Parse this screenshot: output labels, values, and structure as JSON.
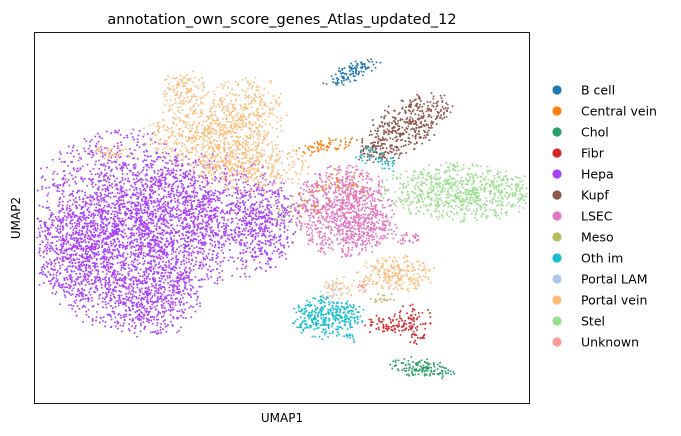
{
  "chart_data": {
    "type": "scatter",
    "title": "annotation_own_score_genes_Atlas_updated_12",
    "xlabel": "UMAP1",
    "ylabel": "UMAP2",
    "xlim": [
      0,
      100
    ],
    "ylim": [
      0,
      100
    ],
    "grid": false,
    "ticks_visible": false,
    "legend_position": "right",
    "series": [
      {
        "name": "B cell",
        "color": "#1f77b4",
        "clusters": [
          {
            "cx": 64.3,
            "cy": 89.5,
            "sx": 1.2,
            "sy": 3.2,
            "n": 110,
            "rot": -62
          }
        ]
      },
      {
        "name": "Central vein",
        "color": "#ff7f0e",
        "clusters": [
          {
            "cx": 59.3,
            "cy": 69.5,
            "sx": 1.0,
            "sy": 3.5,
            "n": 70,
            "rot": -75
          },
          {
            "cx": 61.5,
            "cy": 58.5,
            "sx": 3.0,
            "sy": 2.5,
            "n": 60,
            "rot": 0
          },
          {
            "cx": 55.0,
            "cy": 53.5,
            "sx": 2.0,
            "sy": 2.0,
            "n": 25,
            "rot": 0
          }
        ]
      },
      {
        "name": "Chol",
        "color": "#279e68",
        "clusters": [
          {
            "cx": 78.5,
            "cy": 9.5,
            "sx": 3.5,
            "sy": 1.3,
            "n": 130,
            "rot": -10
          }
        ]
      },
      {
        "name": "Fibr",
        "color": "#d62728",
        "clusters": [
          {
            "cx": 76.5,
            "cy": 21.5,
            "sx": 2.0,
            "sy": 2.8,
            "n": 90,
            "rot": 0
          },
          {
            "cx": 71.0,
            "cy": 21.0,
            "sx": 2.0,
            "sy": 1.5,
            "n": 60,
            "rot": 0
          }
        ]
      },
      {
        "name": "Hepa",
        "color": "#aa40fc",
        "clusters": [
          {
            "cx": 18.0,
            "cy": 47.0,
            "sx": 10.0,
            "sy": 13.0,
            "n": 2400,
            "rot": 0
          },
          {
            "cx": 35.0,
            "cy": 50.0,
            "sx": 9.0,
            "sy": 8.5,
            "n": 1100,
            "rot": 0
          },
          {
            "cx": 10.0,
            "cy": 42.0,
            "sx": 4.5,
            "sy": 7.0,
            "n": 500,
            "rot": 0
          },
          {
            "cx": 23.5,
            "cy": 28.0,
            "sx": 5.0,
            "sy": 5.0,
            "n": 420,
            "rot": 0
          },
          {
            "cx": 46.0,
            "cy": 48.0,
            "sx": 3.5,
            "sy": 6.0,
            "n": 280,
            "rot": 0
          }
        ]
      },
      {
        "name": "Kupf",
        "color": "#8c564b",
        "clusters": [
          {
            "cx": 75.0,
            "cy": 75.0,
            "sx": 3.0,
            "sy": 5.5,
            "n": 380,
            "rot": -48
          },
          {
            "cx": 70.0,
            "cy": 68.0,
            "sx": 2.5,
            "sy": 2.0,
            "n": 80,
            "rot": 0
          }
        ]
      },
      {
        "name": "LSEC",
        "color": "#e377c2",
        "clusters": [
          {
            "cx": 62.5,
            "cy": 52.0,
            "sx": 5.0,
            "sy": 6.0,
            "n": 900,
            "rot": 0
          },
          {
            "cx": 67.0,
            "cy": 47.0,
            "sx": 3.0,
            "sy": 3.0,
            "n": 120,
            "rot": 0
          },
          {
            "cx": 75.5,
            "cy": 44.5,
            "sx": 1.5,
            "sy": 0.8,
            "n": 30,
            "rot": 0
          }
        ]
      },
      {
        "name": "Meso",
        "color": "#b5bd61",
        "clusters": [
          {
            "cx": 70.5,
            "cy": 28.5,
            "sx": 1.5,
            "sy": 1.0,
            "n": 18,
            "rot": 0
          },
          {
            "cx": 50.0,
            "cy": 51.0,
            "sx": 1.5,
            "sy": 1.5,
            "n": 12,
            "rot": 0
          }
        ]
      },
      {
        "name": "Oth im",
        "color": "#17becf",
        "clusters": [
          {
            "cx": 58.5,
            "cy": 23.0,
            "sx": 3.2,
            "sy": 2.8,
            "n": 280,
            "rot": 0
          },
          {
            "cx": 63.5,
            "cy": 24.0,
            "sx": 1.8,
            "sy": 2.0,
            "n": 60,
            "rot": 0
          },
          {
            "cx": 64.0,
            "cy": 17.5,
            "sx": 0.8,
            "sy": 0.8,
            "n": 15,
            "rot": 0
          },
          {
            "cx": 69.0,
            "cy": 66.0,
            "sx": 3.0,
            "sy": 1.2,
            "n": 45,
            "rot": -35
          }
        ]
      },
      {
        "name": "Portal LAM",
        "color": "#aec7e8",
        "clusters": [
          {
            "cx": 60.0,
            "cy": 30.0,
            "sx": 1.5,
            "sy": 1.5,
            "n": 15,
            "rot": 0
          },
          {
            "cx": 50.5,
            "cy": 49.0,
            "sx": 1.0,
            "sy": 1.0,
            "n": 6,
            "rot": 0
          }
        ]
      },
      {
        "name": "Portal vein",
        "color": "#ffbb78",
        "clusters": [
          {
            "cx": 34.0,
            "cy": 72.0,
            "sx": 6.0,
            "sy": 4.5,
            "n": 460,
            "rot": 0
          },
          {
            "cx": 43.0,
            "cy": 78.5,
            "sx": 4.0,
            "sy": 5.0,
            "n": 260,
            "rot": 0
          },
          {
            "cx": 30.0,
            "cy": 84.0,
            "sx": 2.5,
            "sy": 3.0,
            "n": 120,
            "rot": 0
          },
          {
            "cx": 43.0,
            "cy": 63.5,
            "sx": 6.0,
            "sy": 3.5,
            "n": 380,
            "rot": 0
          },
          {
            "cx": 73.0,
            "cy": 35.0,
            "sx": 4.0,
            "sy": 2.5,
            "n": 220,
            "rot": 0
          },
          {
            "cx": 15.0,
            "cy": 67.5,
            "sx": 2.5,
            "sy": 1.0,
            "n": 40,
            "rot": 0
          },
          {
            "cx": 62.0,
            "cy": 31.0,
            "sx": 2.5,
            "sy": 1.5,
            "n": 45,
            "rot": 0
          }
        ]
      },
      {
        "name": "Stel",
        "color": "#98df8a",
        "clusters": [
          {
            "cx": 86.0,
            "cy": 57.0,
            "sx": 8.0,
            "sy": 3.8,
            "n": 720,
            "rot": -3
          }
        ]
      },
      {
        "name": "Unknown",
        "color": "#ff9896",
        "clusters": [
          {
            "cx": 67.0,
            "cy": 31.5,
            "sx": 1.0,
            "sy": 0.8,
            "n": 10,
            "rot": 0
          }
        ]
      }
    ]
  }
}
